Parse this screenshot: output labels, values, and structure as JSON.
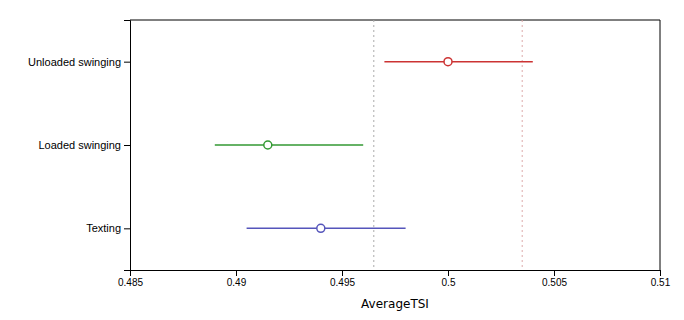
{
  "chart_data": {
    "type": "dot",
    "orientation": "horizontal",
    "categories": [
      "Unloaded swinging",
      "Loaded swinging",
      "Texting"
    ],
    "values": [
      0.5,
      0.4915,
      0.494
    ],
    "error_minus": [
      0.003,
      0.0025,
      0.0035
    ],
    "error_plus": [
      0.004,
      0.0045,
      0.004
    ],
    "colors": [
      "#cc3333",
      "#339933",
      "#5555bb"
    ],
    "vlines": [
      {
        "value": 0.4965,
        "color": "#aaaaaa"
      },
      {
        "value": 0.5035,
        "color": "#ddaaaa"
      }
    ],
    "xlabel": "AverageTSI",
    "xlim": [
      0.485,
      0.51
    ],
    "xticks": [
      0.485,
      0.49,
      0.495,
      0.5,
      0.505,
      0.51
    ],
    "grid": false
  }
}
